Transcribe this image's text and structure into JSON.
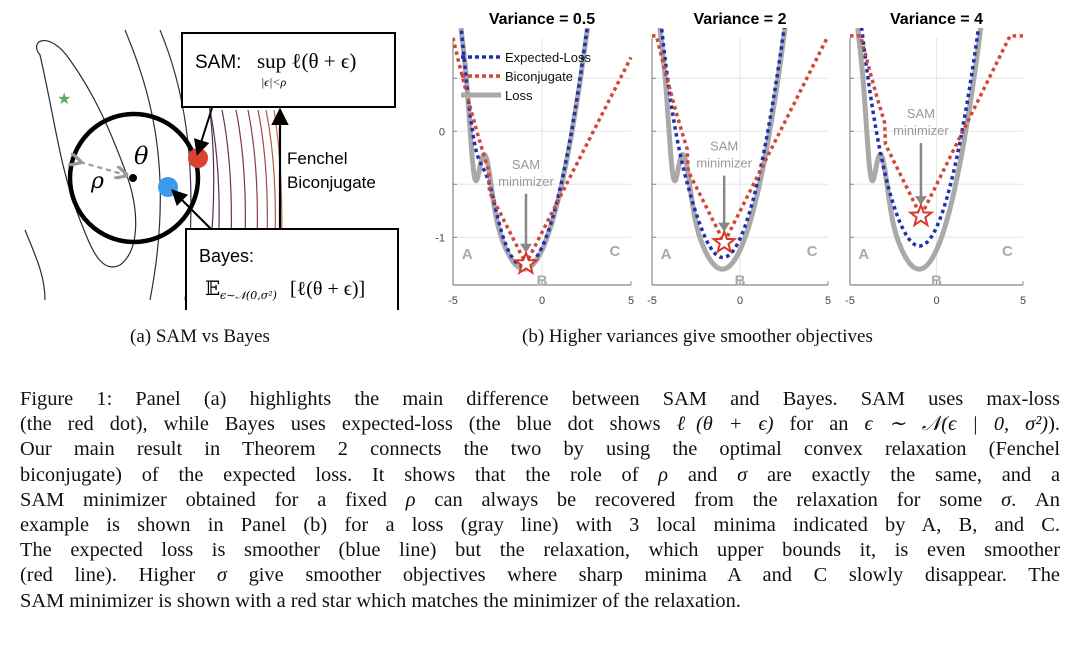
{
  "panel_a": {
    "sam_box": {
      "label": "SAM:",
      "formula": "sup ℓ(θ + ϵ)",
      "subscript": "|ϵ|<ρ"
    },
    "bayes_box": {
      "label": "Bayes:",
      "formula_E": "𝔼",
      "formula_sub": "ϵ∼𝒩(0,σ²)",
      "formula_body": "[ℓ(θ + ϵ)]"
    },
    "fenchel_label_1": "Fenchel",
    "fenchel_label_2": "Biconjugate",
    "theta_label": "θ",
    "rho_label": "ρ",
    "colors": {
      "sam_dot": "#d9432f",
      "bayes_dot": "#3a9bea",
      "optimum_star": "#5aa86a",
      "contour_inner": "#2a2a3a",
      "contour_outer": "#c0704a"
    }
  },
  "chart_data": [
    {
      "type": "line",
      "title": "Variance = 0.5",
      "variance": 0.5,
      "xlim": [
        -5,
        5
      ],
      "ylim": [
        -1.45,
        0.88
      ],
      "xticks": [
        "-5",
        "0",
        "5"
      ],
      "yticks": [
        "0",
        "-1"
      ],
      "grid": true,
      "legend": {
        "placement": "top-left",
        "entries": [
          "Expected-Loss",
          "Biconjugate",
          "Loss"
        ]
      },
      "annotation": {
        "text_1": "SAM",
        "text_2": "minimizer",
        "star_x": -0.9,
        "star_y": -1.25
      },
      "minima_labels": [
        "A",
        "B",
        "C"
      ]
    },
    {
      "type": "line",
      "title": "Variance = 2",
      "variance": 2,
      "xlim": [
        -5,
        5
      ],
      "ylim": [
        -1.45,
        0.88
      ],
      "xticks": [
        "-5",
        "0",
        "5"
      ],
      "yticks": [],
      "grid": true,
      "annotation": {
        "text_1": "SAM",
        "text_2": "minimizer",
        "star_x": -0.9,
        "star_y": -1.05
      },
      "minima_labels": [
        "A",
        "B",
        "C"
      ]
    },
    {
      "type": "line",
      "title": "Variance = 4",
      "variance": 4,
      "xlim": [
        -5,
        5
      ],
      "ylim": [
        -1.45,
        0.88
      ],
      "xticks": [
        "-5",
        "0",
        "5"
      ],
      "yticks": [],
      "grid": true,
      "annotation": {
        "text_1": "SAM",
        "text_2": "minimizer",
        "star_x": -0.9,
        "star_y": -0.8
      },
      "minima_labels": [
        "A",
        "B",
        "C"
      ]
    }
  ],
  "series_style": {
    "expected_loss": {
      "name": "Expected-Loss",
      "color": "#1f2fb0"
    },
    "biconjugate": {
      "name": "Biconjugate",
      "color": "#d0473a"
    },
    "loss": {
      "name": "Loss",
      "color": "#a9a9a9"
    }
  },
  "captions": {
    "a": "(a) SAM vs Bayes",
    "b": "(b) Higher variances give smoother objectives"
  },
  "figure_caption": {
    "l1": "Figure 1: Panel (a) highlights the main difference between SAM and Bayes. SAM uses max-loss",
    "l2a": "(the red dot), while Bayes uses expected-loss (the blue dot shows ",
    "l2m1": "ℓ(θ + ϵ)",
    "l2b": " for an ",
    "l2m2": "ϵ ∼ 𝒩(ϵ | 0, σ²)",
    "l2c": ").",
    "l3": "Our main result in Theorem 2 connects the two by using the optimal convex relaxation (Fenchel",
    "l4a": "biconjugate) of the expected loss. It shows that the role of ",
    "l4m1": "ρ",
    "l4b": " and ",
    "l4m2": "σ",
    "l4c": " are exactly the same, and a",
    "l5a": "SAM minimizer obtained for a fixed ",
    "l5m1": "ρ",
    "l5b": " can always be recovered from the relaxation for some ",
    "l5m2": "σ",
    "l5c": ". An",
    "l6": "example is shown in Panel (b) for a loss (gray line) with 3 local minima indicated by A, B, and C.",
    "l7": "The expected loss is smoother (blue line) but the relaxation, which upper bounds it, is even smoother",
    "l8a": "(red line). Higher ",
    "l8m1": "σ",
    "l8b": " give smoother objectives where sharp minima A and C slowly disappear. The",
    "l9": "SAM minimizer is shown with a red star which matches the minimizer of the relaxation."
  }
}
